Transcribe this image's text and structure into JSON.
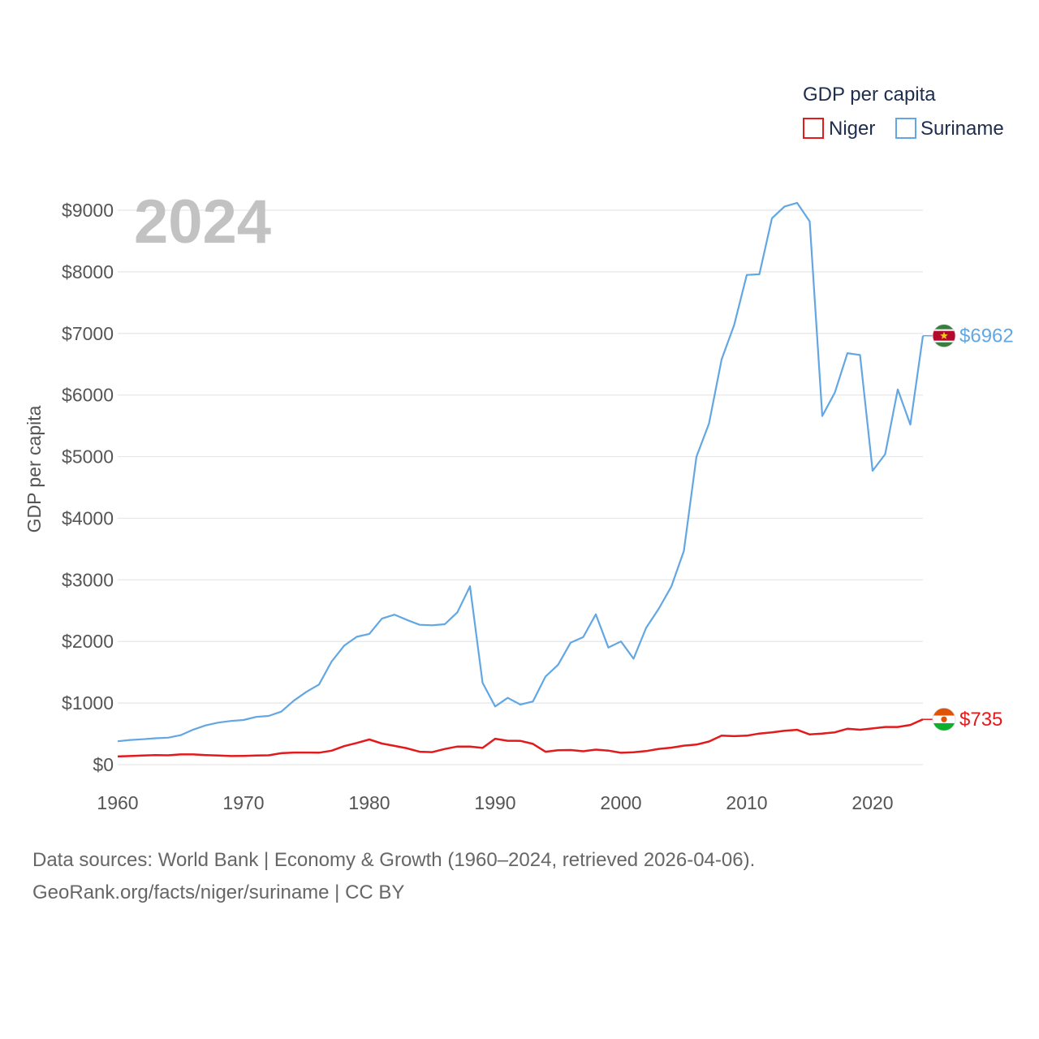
{
  "chart_data": {
    "type": "line",
    "title": "GDP per capita",
    "year_label": "2024",
    "ylabel": "GDP per capita",
    "xlabel": "",
    "xlim": [
      1960,
      2024
    ],
    "ylim": [
      0,
      9000
    ],
    "x_ticks": [
      1960,
      1970,
      1980,
      1990,
      2000,
      2010,
      2020
    ],
    "x_tick_labels": [
      "1960",
      "1970",
      "1980",
      "1990",
      "2000",
      "2010",
      "2020"
    ],
    "y_ticks": [
      0,
      1000,
      2000,
      3000,
      4000,
      5000,
      6000,
      7000,
      8000,
      9000
    ],
    "y_tick_labels": [
      "$0",
      "$1000",
      "$2000",
      "$3000",
      "$4000",
      "$5000",
      "$6000",
      "$7000",
      "$8000",
      "$9000"
    ],
    "grid": true,
    "legend": {
      "position": "top-right",
      "title": "GDP per capita"
    },
    "x": [
      1960,
      1961,
      1962,
      1963,
      1964,
      1965,
      1966,
      1967,
      1968,
      1969,
      1970,
      1971,
      1972,
      1973,
      1974,
      1975,
      1976,
      1977,
      1978,
      1979,
      1980,
      1981,
      1982,
      1983,
      1984,
      1985,
      1986,
      1987,
      1988,
      1989,
      1990,
      1991,
      1992,
      1993,
      1994,
      1995,
      1996,
      1997,
      1998,
      1999,
      2000,
      2001,
      2002,
      2003,
      2004,
      2005,
      2006,
      2007,
      2008,
      2009,
      2010,
      2011,
      2012,
      2013,
      2014,
      2015,
      2016,
      2017,
      2018,
      2019,
      2020,
      2021,
      2022,
      2023,
      2024
    ],
    "series": [
      {
        "name": "Niger",
        "color": "#e31a1c",
        "end_label": "$735",
        "flag": "niger-flag",
        "values": [
          133,
          140,
          148,
          155,
          152,
          166,
          166,
          155,
          147,
          140,
          142,
          147,
          152,
          186,
          196,
          196,
          194,
          226,
          300,
          352,
          409,
          342,
          305,
          265,
          210,
          203,
          254,
          294,
          294,
          272,
          420,
          388,
          386,
          337,
          209,
          235,
          237,
          218,
          244,
          228,
          193,
          201,
          220,
          255,
          275,
          308,
          325,
          376,
          472,
          463,
          470,
          505,
          524,
          550,
          565,
          490,
          505,
          524,
          583,
          567,
          588,
          611,
          612,
          645,
          735
        ]
      },
      {
        "name": "Suriname",
        "color": "#62a7e3",
        "end_label": "$6962",
        "flag": "suriname-flag",
        "values": [
          380,
          400,
          413,
          428,
          437,
          478,
          568,
          638,
          682,
          709,
          725,
          775,
          791,
          860,
          1038,
          1182,
          1301,
          1673,
          1932,
          2076,
          2123,
          2371,
          2435,
          2348,
          2270,
          2262,
          2280,
          2473,
          2895,
          1330,
          945,
          1085,
          975,
          1025,
          1430,
          1620,
          1980,
          2070,
          2440,
          1900,
          2000,
          1720,
          2220,
          2530,
          2890,
          3470,
          5000,
          5540,
          6580,
          7140,
          7950,
          7960,
          8870,
          9060,
          9120,
          8820,
          5660,
          6040,
          6680,
          6650,
          4770,
          5040,
          6090,
          5520,
          6962
        ]
      }
    ]
  },
  "source": {
    "line1": "Data sources: World Bank | Economy & Growth (1960–2024, retrieved 2026-04-06).",
    "line2": "GeoRank.org/facts/niger/suriname | CC BY"
  }
}
